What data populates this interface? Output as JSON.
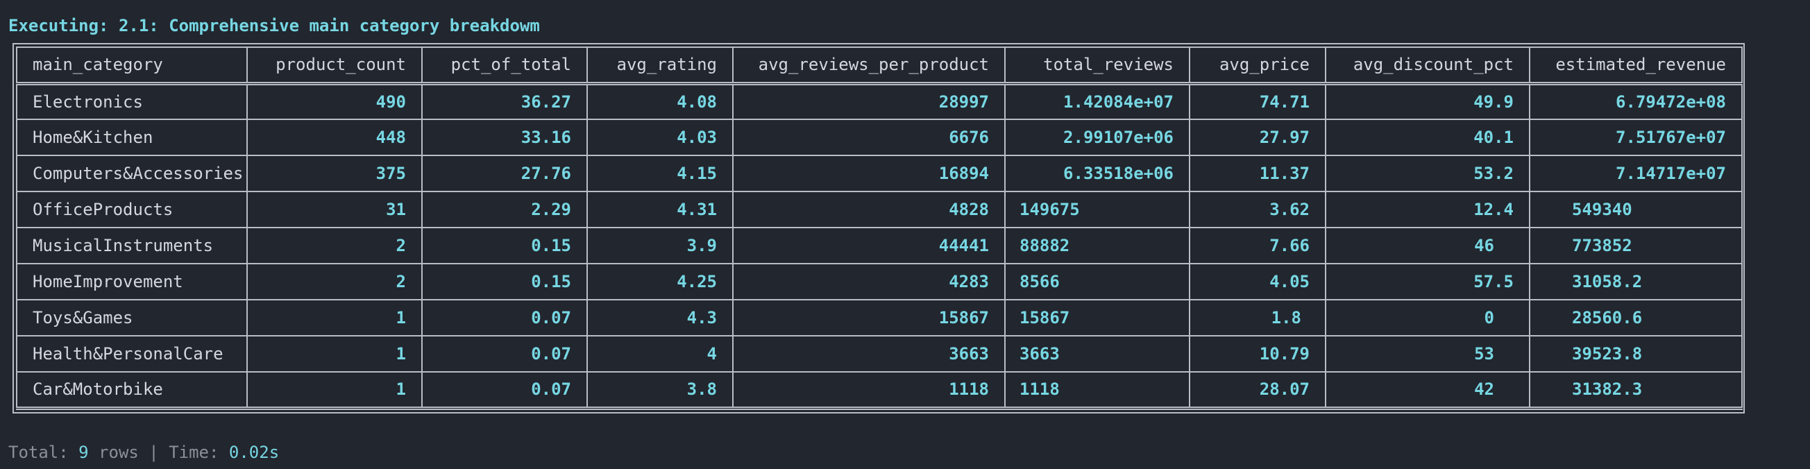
{
  "title": "Executing: 2.1: Comprehensive main category breakdowm",
  "columns": [
    "main_category",
    "product_count",
    "pct_of_total",
    "avg_rating",
    "avg_reviews_per_product",
    "total_reviews",
    "avg_price",
    "avg_discount_pct",
    "estimated_revenue"
  ],
  "rows": [
    [
      "Electronics",
      "490",
      "36.27",
      "4.08",
      "28997",
      "1.42084e+07",
      "74.71",
      "49.9",
      "6.79472e+08"
    ],
    [
      "Home&Kitchen",
      "448",
      "33.16",
      "4.03",
      "6676",
      "2.99107e+06",
      "27.97",
      "40.1",
      "7.51767e+07"
    ],
    [
      "Computers&Accessories",
      "375",
      "27.76",
      "4.15",
      "16894",
      "6.33518e+06",
      "11.37",
      "53.2",
      "7.14717e+07"
    ],
    [
      "OfficeProducts",
      "31",
      "2.29",
      "4.31",
      "4828",
      "149675",
      "3.62",
      "12.4",
      "549340"
    ],
    [
      "MusicalInstruments",
      "2",
      "0.15",
      "3.9",
      "44441",
      "88882",
      "7.66",
      "46",
      "773852"
    ],
    [
      "HomeImprovement",
      "2",
      "0.15",
      "4.25",
      "4283",
      "8566",
      "4.05",
      "57.5",
      "31058.2"
    ],
    [
      "Toys&Games",
      "1",
      "0.07",
      "4.3",
      "15867",
      "15867",
      "1.8",
      "0",
      "28560.6"
    ],
    [
      "Health&PersonalCare",
      "1",
      "0.07",
      "4",
      "3663",
      "3663",
      "10.79",
      "53",
      "39523.8"
    ],
    [
      "Car&Motorbike",
      "1",
      "0.07",
      "3.8",
      "1118",
      "1118",
      "28.07",
      "42",
      "31382.3"
    ]
  ],
  "footer": {
    "prefix": "Total: ",
    "rows_count": "9",
    "middle": " rows | Time: ",
    "time": "0.02s"
  },
  "colors": {
    "background": "#22262e",
    "accent": "#76d7e3",
    "text": "#d4d7dd",
    "muted": "#8a9099",
    "border": "#b9bdc6"
  }
}
